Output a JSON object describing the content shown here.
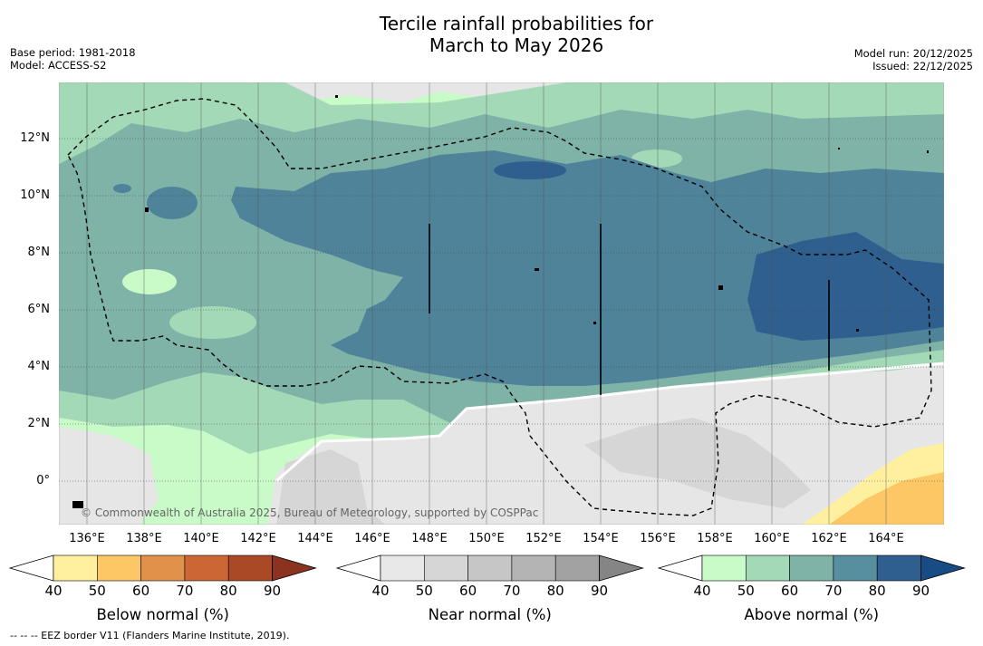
{
  "title": {
    "line1": "Tercile rainfall probabilities for",
    "line2": "March to May 2026"
  },
  "meta_left": {
    "base_period": "Base period: 1981-2018",
    "model": "Model: ACCESS-S2"
  },
  "meta_right": {
    "model_run": "Model run: 20/12/2025",
    "issued": "Issued: 22/12/2025"
  },
  "map": {
    "lat_labels": [
      "12°N",
      "10°N",
      "8°N",
      "6°N",
      "4°N",
      "2°N",
      "0°"
    ],
    "lon_labels": [
      "136°E",
      "138°E",
      "140°E",
      "142°E",
      "144°E",
      "146°E",
      "148°E",
      "150°E",
      "152°E",
      "154°E",
      "156°E",
      "158°E",
      "160°E",
      "162°E",
      "164°E"
    ],
    "copyright": "© Commonwealth of Australia 2025, Bureau of Meteorology, supported by COSPPac"
  },
  "colorbars": [
    {
      "title": "Below normal (%)",
      "ticks": [
        "40",
        "50",
        "60",
        "70",
        "80",
        "90"
      ],
      "colors": [
        "#ffffff",
        "#fff0a0",
        "#fdc766",
        "#e1914a",
        "#cc6634",
        "#aa4926",
        "#8c3320"
      ]
    },
    {
      "title": "Near normal (%)",
      "ticks": [
        "40",
        "50",
        "60",
        "70",
        "80",
        "90"
      ],
      "colors": [
        "#ffffff",
        "#e8e8e8",
        "#d6d6d6",
        "#c6c6c6",
        "#b4b4b4",
        "#a2a2a2",
        "#858585"
      ]
    },
    {
      "title": "Above normal (%)",
      "ticks": [
        "40",
        "50",
        "60",
        "70",
        "80",
        "90"
      ],
      "colors": [
        "#ffffff",
        "#c9fbc8",
        "#a4d9b8",
        "#7fb3a8",
        "#588f9e",
        "#2f5f8f",
        "#174c85"
      ]
    }
  ],
  "footnote": "--  --  -- EEZ border V11 (Flanders Marine Institute, 2019)."
}
